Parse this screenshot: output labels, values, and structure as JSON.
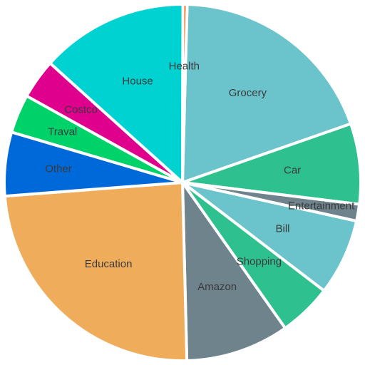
{
  "chart_data": {
    "type": "pie",
    "start_angle_deg": -88.5,
    "direction": "clockwise",
    "legend": "none",
    "slices": [
      {
        "label": "Grocery",
        "value": 20.3,
        "color": "#6BC4CB"
      },
      {
        "label": "Car",
        "value": 7.7,
        "color": "#2FC08F"
      },
      {
        "label": "Entertainment",
        "value": 1.6,
        "color": "#6F838D"
      },
      {
        "label": "Bill",
        "value": 7.3,
        "color": "#6BC4CB"
      },
      {
        "label": "Shopping",
        "value": 5.1,
        "color": "#2FC08F"
      },
      {
        "label": "Amazon",
        "value": 9.9,
        "color": "#6F838D"
      },
      {
        "label": "Education",
        "value": 25.5,
        "color": "#EFAD5C"
      },
      {
        "label": "Other",
        "value": 6.1,
        "color": "#0069D9"
      },
      {
        "label": "Traval",
        "value": 3.7,
        "color": "#00D26A"
      },
      {
        "label": "Costco",
        "value": 3.8,
        "color": "#E0008E"
      },
      {
        "label": "House",
        "value": 14.1,
        "color": "#00D1D1"
      },
      {
        "label": "Health",
        "value": 0.4,
        "color": "#E8661C"
      }
    ]
  }
}
